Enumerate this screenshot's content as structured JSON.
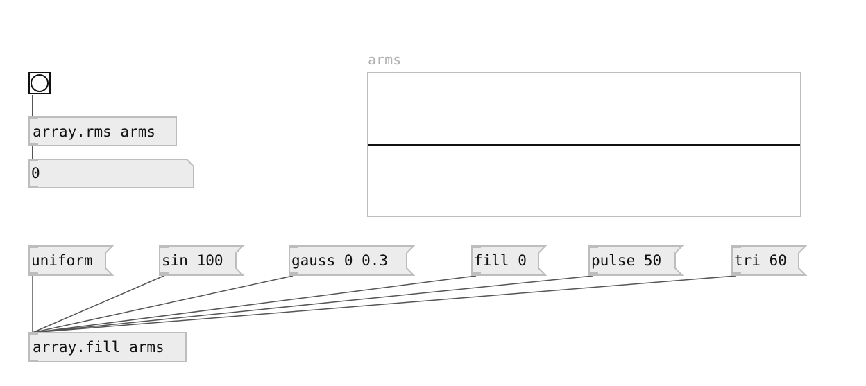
{
  "objects": {
    "rms_label": "array.rms arms",
    "fill_label": "array.fill arms"
  },
  "number_box": {
    "value": "0"
  },
  "array": {
    "name": "arms"
  },
  "messages": {
    "uniform": "uniform",
    "sin": "sin 100",
    "gauss": "gauss 0 0.3",
    "fill": "fill 0",
    "pulse": "pulse 50",
    "tri": "tri 60"
  },
  "colors": {
    "box_fill": "#ececec",
    "box_border": "#bdbdbd",
    "wire": "#555555",
    "label_gray": "#b0b0b0"
  },
  "icons": {
    "bang": "bang-circle-icon"
  }
}
